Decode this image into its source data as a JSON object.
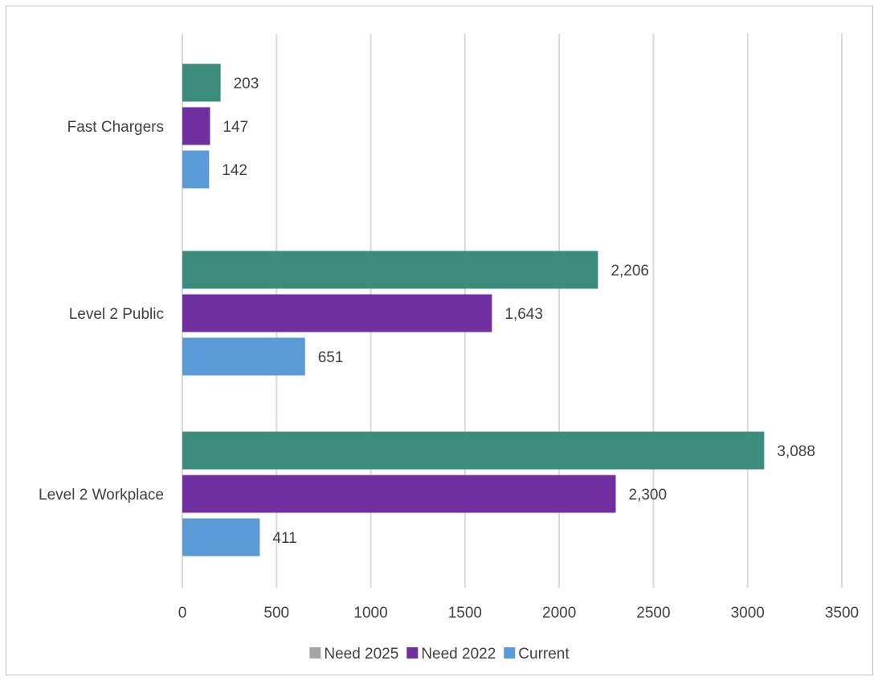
{
  "chart_data": {
    "type": "bar",
    "orientation": "horizontal",
    "categories": [
      "Fast Chargers",
      "Level 2 Public",
      "Level 2 Workplace"
    ],
    "series": [
      {
        "name": "Need 2025",
        "values": [
          203,
          2206,
          3088
        ],
        "labels": [
          "203",
          "2,206",
          "3,088"
        ],
        "color": "#3b8c7c",
        "legend_color": "#a5a5a5"
      },
      {
        "name": "Need 2022",
        "values": [
          147,
          1643,
          2300
        ],
        "labels": [
          "147",
          "1,643",
          "2,300"
        ],
        "color": "#7030a0",
        "legend_color": "#7030a0"
      },
      {
        "name": "Current",
        "values": [
          142,
          651,
          411
        ],
        "labels": [
          "142",
          "651",
          "411"
        ],
        "color": "#5b9bd5",
        "legend_color": "#5b9bd5"
      }
    ],
    "xlim": [
      0,
      3500
    ],
    "xticks": [
      0,
      500,
      1000,
      1500,
      2000,
      2500,
      3000,
      3500
    ],
    "xtick_labels": [
      "0",
      "500",
      "1000",
      "1500",
      "2000",
      "2500",
      "3000",
      "3500"
    ],
    "grid": true,
    "legend_position": "bottom"
  }
}
